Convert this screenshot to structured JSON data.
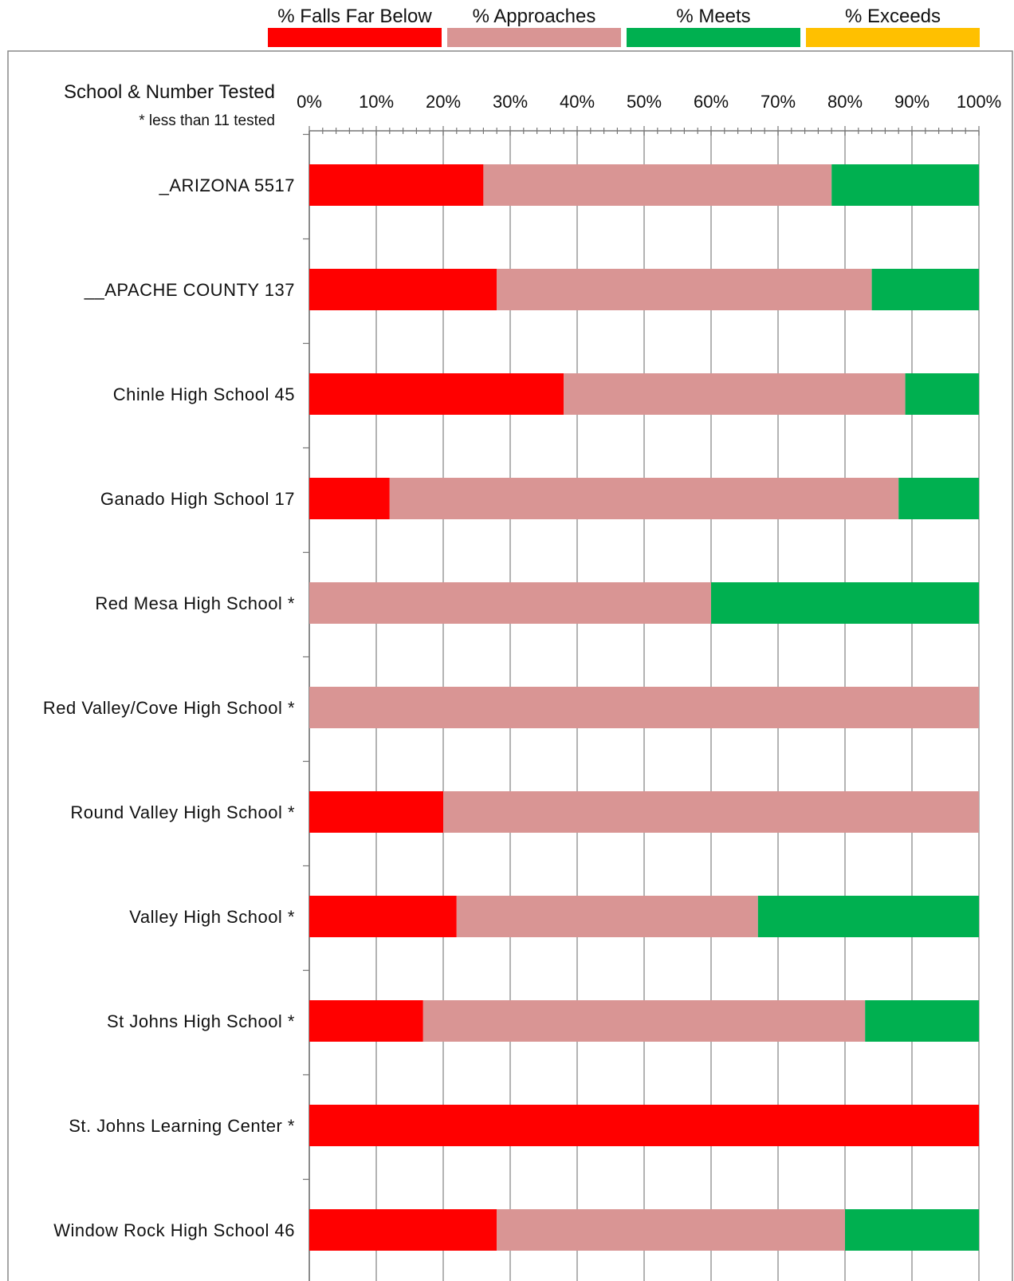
{
  "chart_data": {
    "type": "bar",
    "orientation": "horizontal",
    "stacked": true,
    "title": "",
    "ylabel": "School & Number Tested",
    "ylabel_note": "* less than 11 tested",
    "xlim": [
      0,
      100
    ],
    "x_ticks": [
      "0%",
      "10%",
      "20%",
      "30%",
      "40%",
      "50%",
      "60%",
      "70%",
      "80%",
      "90%",
      "100%"
    ],
    "legend_position": "top",
    "grid": true,
    "categories": [
      "_ARIZONA 5517",
      "__APACHE COUNTY 137",
      "Chinle High School 45",
      "Ganado High School 17",
      "Red Mesa High School *",
      "Red Valley/Cove High School *",
      "Round Valley High School *",
      "Valley High School *",
      "St Johns High School *",
      "St. Johns Learning Center *",
      "Window Rock High School 46"
    ],
    "series": [
      {
        "name": "% Falls Far Below",
        "color": "#ff0000",
        "values": [
          26,
          28,
          38,
          12,
          0,
          0,
          20,
          22,
          17,
          100,
          28
        ]
      },
      {
        "name": "% Approaches",
        "color": "#d99594",
        "values": [
          52,
          56,
          51,
          76,
          60,
          100,
          80,
          45,
          66,
          0,
          52
        ]
      },
      {
        "name": "% Meets",
        "color": "#00b050",
        "values": [
          22,
          16,
          11,
          12,
          40,
          0,
          0,
          33,
          17,
          0,
          20
        ]
      },
      {
        "name": "% Exceeds",
        "color": "#ffc000",
        "values": [
          0,
          0,
          0,
          0,
          0,
          0,
          0,
          0,
          0,
          0,
          0
        ]
      }
    ]
  }
}
